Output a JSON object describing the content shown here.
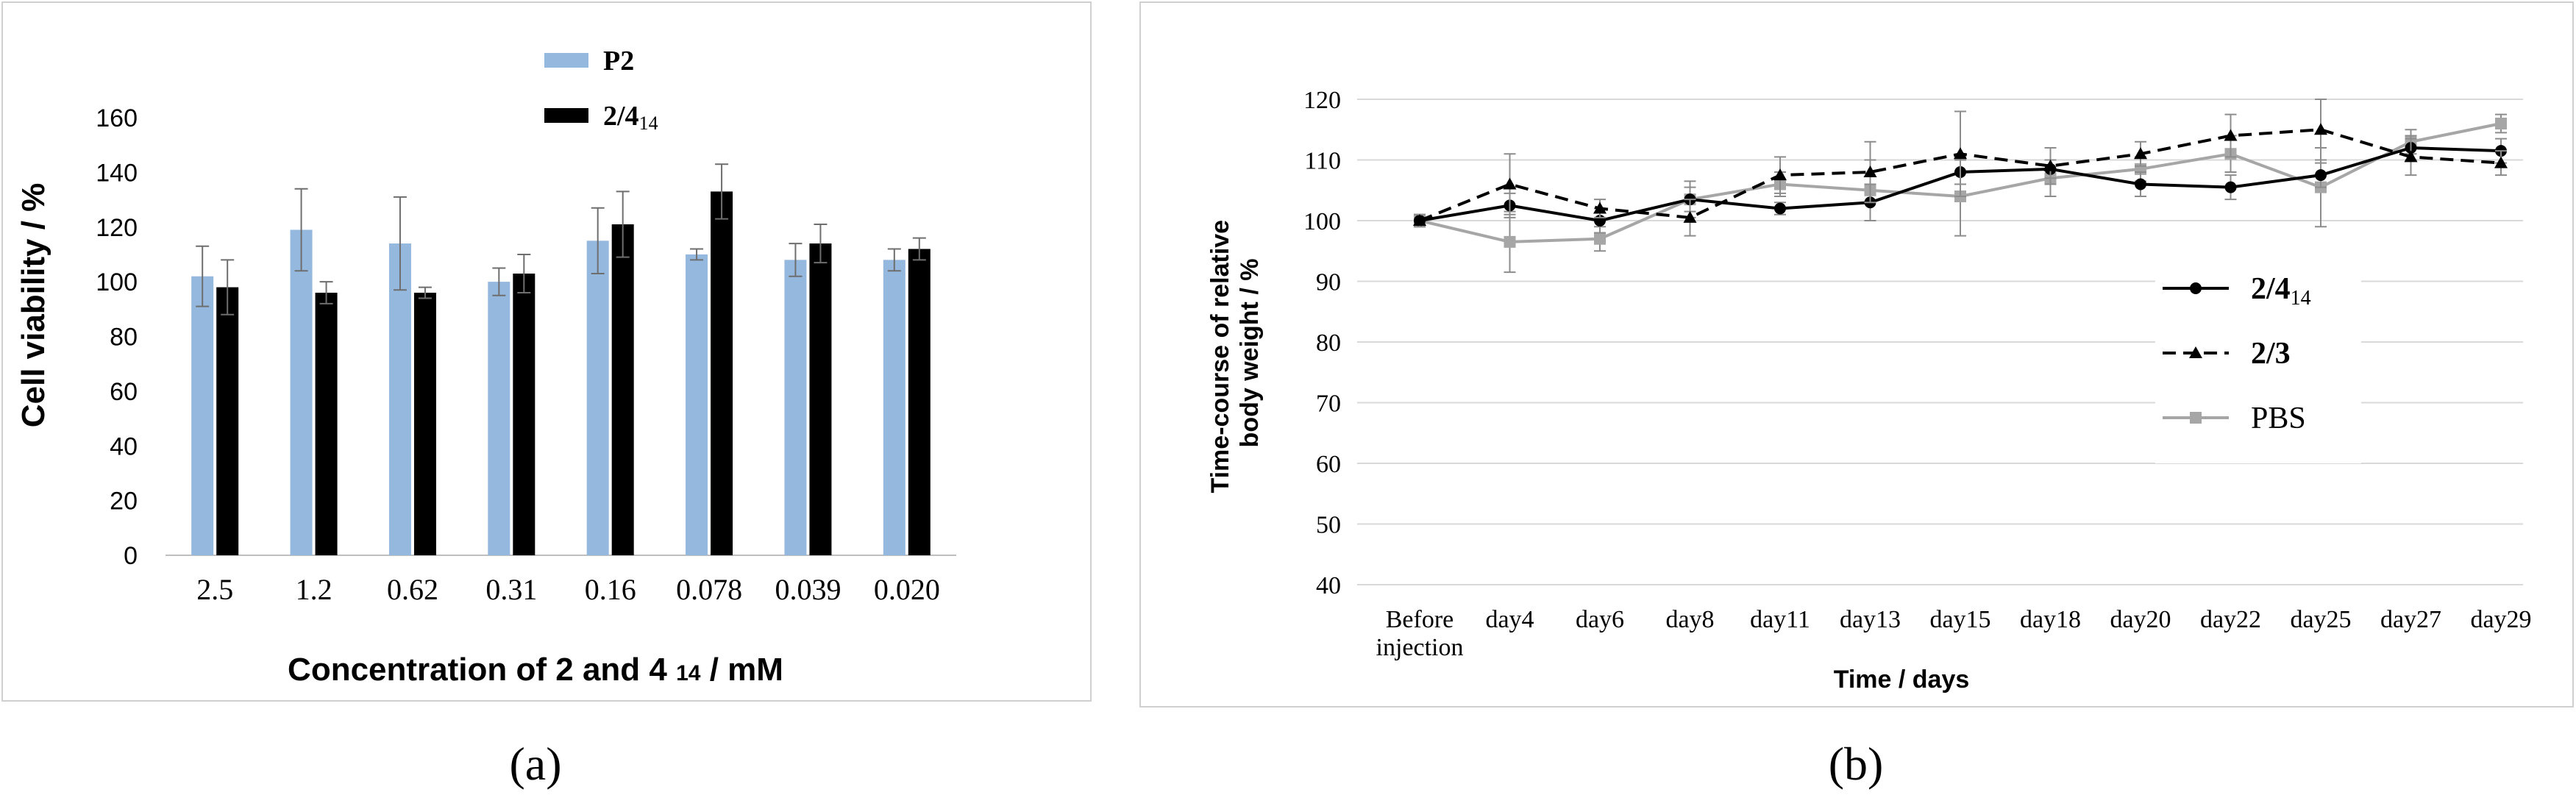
{
  "chart_data": [
    {
      "type": "bar",
      "panel_label": "(a)",
      "xlabel": "Concentration of 2 and 4",
      "xlabel_sub": "14",
      "xlabel_unit": "/ mM",
      "ylabel": "Cell viability / %",
      "ylim": [
        0,
        160
      ],
      "yticks": [
        "0",
        "20",
        "40",
        "60",
        "80",
        "100",
        "120",
        "140",
        "160"
      ],
      "categories": [
        "2.5",
        "1.2",
        "0.62",
        "0.31",
        "0.16",
        "0.078",
        "0.039",
        "0.020"
      ],
      "series": [
        {
          "name": "P2",
          "legend_main": "P2",
          "legend_sub": "",
          "color": "#95b8de",
          "values": [
            102,
            119,
            114,
            100,
            115,
            110,
            108,
            108
          ],
          "errors": [
            11,
            15,
            17,
            5,
            12,
            2,
            6,
            4
          ]
        },
        {
          "name": "2/4 14",
          "legend_main": "2/4",
          "legend_sub": "14",
          "color": "#000000",
          "values": [
            98,
            96,
            96,
            103,
            121,
            133,
            114,
            112
          ],
          "errors": [
            10,
            4,
            2,
            7,
            12,
            10,
            7,
            4
          ]
        }
      ],
      "legend_position": "top-center"
    },
    {
      "type": "line",
      "panel_label": "(b)",
      "xlabel": "Time / days",
      "ylabel": "Time-course of relative body weight / %",
      "ylabel_lines": [
        "Time-course of relative",
        "body weight / %"
      ],
      "ylim": [
        40,
        120
      ],
      "yticks": [
        "40",
        "50",
        "60",
        "70",
        "80",
        "90",
        "100",
        "110",
        "120"
      ],
      "categories": [
        "Before injection",
        "day4",
        "day6",
        "day8",
        "day11",
        "day13",
        "day15",
        "day18",
        "day20",
        "day22",
        "day25",
        "day27",
        "day29"
      ],
      "category_lines": [
        [
          "Before",
          "injection"
        ],
        [
          "day4"
        ],
        [
          "day6"
        ],
        [
          "day8"
        ],
        [
          "day11"
        ],
        [
          "day13"
        ],
        [
          "day15"
        ],
        [
          "day18"
        ],
        [
          "day20"
        ],
        [
          "day22"
        ],
        [
          "day25"
        ],
        [
          "day27"
        ],
        [
          "day29"
        ]
      ],
      "series": [
        {
          "name": "2/4 14",
          "legend_main": "2/4",
          "legend_sub": "14",
          "color": "#000000",
          "dash": "solid",
          "marker": "circle",
          "values": [
            100,
            102.5,
            100,
            103.5,
            102,
            103,
            108,
            108.5,
            106,
            105.5,
            107.5,
            112,
            111.5
          ],
          "errors": [
            1,
            2,
            2,
            2,
            1,
            3,
            2,
            1.5,
            2,
            2,
            2,
            2,
            2
          ]
        },
        {
          "name": "2/3",
          "legend_main": "2/3",
          "legend_sub": "",
          "color": "#000000",
          "dash": "dashed",
          "marker": "triangle",
          "values": [
            100,
            106,
            102,
            100.5,
            107.5,
            108,
            111,
            109,
            111,
            114,
            115,
            110.5,
            109.5
          ],
          "errors": [
            1,
            5,
            1.5,
            3,
            3,
            5,
            7,
            3,
            2,
            3.5,
            5,
            3,
            2
          ]
        },
        {
          "name": "PBS",
          "legend_main": "PBS",
          "legend_sub": "",
          "color": "#a6a6a6",
          "dash": "solid",
          "marker": "square",
          "values": [
            100,
            96.5,
            97,
            103.5,
            106,
            105,
            104,
            107,
            108.5,
            111,
            105.5,
            113,
            116
          ],
          "errors": [
            1,
            5,
            2,
            3,
            2,
            5,
            6.5,
            3,
            2,
            3,
            6.5,
            2,
            1.5
          ]
        }
      ],
      "legend_position": "right-center"
    }
  ]
}
